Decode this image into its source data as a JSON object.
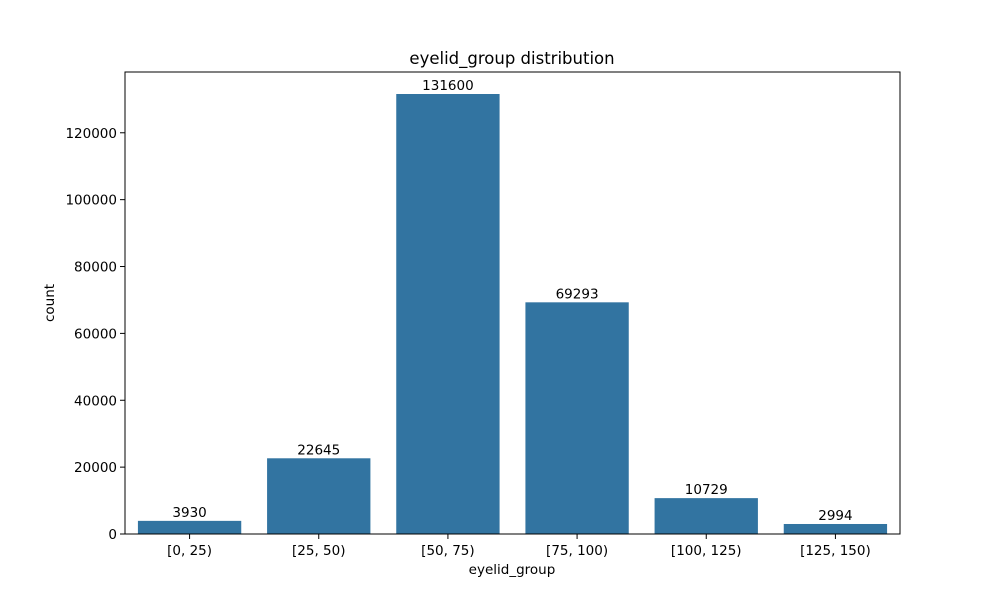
{
  "chart_data": {
    "type": "bar",
    "title": "eyelid_group distribution",
    "xlabel": "eyelid_group",
    "ylabel": "count",
    "categories": [
      "[0, 25)",
      "[25, 50)",
      "[50, 75)",
      "[75, 100)",
      "[100, 125)",
      "[125, 150)"
    ],
    "values": [
      3930,
      22645,
      131600,
      69293,
      10729,
      2994
    ],
    "data_labels": [
      "3930",
      "22645",
      "131600",
      "69293",
      "10729",
      "2994"
    ],
    "ylim": [
      0,
      138180
    ],
    "yticks": [
      0,
      20000,
      40000,
      60000,
      80000,
      100000,
      120000
    ],
    "ytick_labels": [
      "0",
      "20000",
      "40000",
      "60000",
      "80000",
      "100000",
      "120000"
    ],
    "bar_color": "#3274a1",
    "grid": false,
    "legend": "none"
  }
}
